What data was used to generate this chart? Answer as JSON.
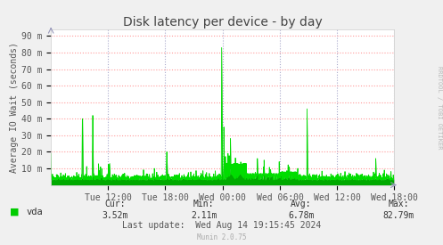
{
  "title": "Disk latency per device - by day",
  "ylabel": "Average IO Wait (seconds)",
  "line_color": "#00DD00",
  "fill_color": "#00AA00",
  "bg_color": "#F0F0F0",
  "plot_bg_color": "#FFFFFF",
  "grid_color_h": "#FF9999",
  "grid_color_v": "#AAAACC",
  "ytick_labels": [
    "90 m",
    "80 m",
    "70 m",
    "60 m",
    "50 m",
    "40 m",
    "30 m",
    "20 m",
    "10 m"
  ],
  "ytick_values": [
    0.09,
    0.08,
    0.07,
    0.06,
    0.05,
    0.04,
    0.03,
    0.02,
    0.01
  ],
  "ylim": [
    0,
    0.094
  ],
  "xtick_labels": [
    "Tue 12:00",
    "Tue 18:00",
    "Wed 00:00",
    "Wed 06:00",
    "Wed 12:00",
    "Wed 18:00"
  ],
  "xtick_positions": [
    0.167,
    0.333,
    0.5,
    0.667,
    0.833,
    1.0
  ],
  "legend_label": "vda",
  "legend_color": "#00CC00",
  "cur_label": "Cur:",
  "cur_value": "3.52m",
  "min_label": "Min:",
  "min_value": "2.11m",
  "avg_label": "Avg:",
  "avg_value": "6.78m",
  "max_label": "Max:",
  "max_value": "82.79m",
  "last_update": "Last update:  Wed Aug 14 19:15:45 2024",
  "munin_version": "Munin 2.0.75",
  "watermark": "RRDTOOL / TOBI OETIKER",
  "title_fontsize": 10,
  "axis_label_fontsize": 7,
  "tick_fontsize": 7,
  "legend_fontsize": 7.5,
  "footer_fontsize": 7,
  "watermark_fontsize": 5
}
